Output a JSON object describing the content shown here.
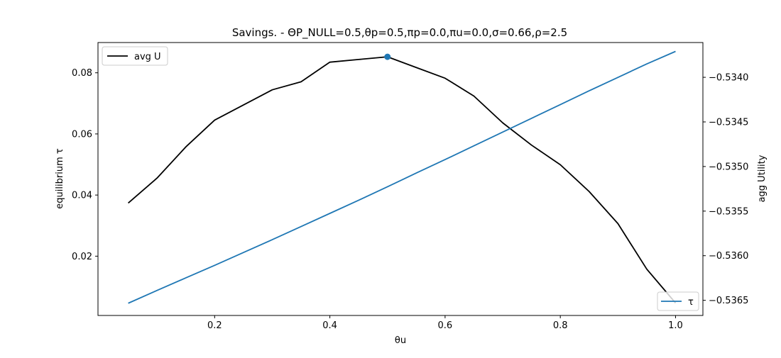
{
  "chart_data": {
    "type": "line",
    "title": "Savings. - ΘP_NULL=0.5,θp=0.5,πp=0.0,πu=0.0,σ=0.66,ρ=2.5",
    "xlabel": "θu",
    "ylabel_left": "equilibrium τ",
    "ylabel_right": "agg Utility",
    "xlim": [
      -0.0025,
      1.0475
    ],
    "ylim_left": [
      0.0006,
      0.0899
    ],
    "ylim_right": [
      -0.53667,
      -0.53361
    ],
    "x_ticks": [
      0.2,
      0.4,
      0.6,
      0.8,
      1.0
    ],
    "x_tick_labels": [
      "0.2",
      "0.4",
      "0.6",
      "0.8",
      "1.0"
    ],
    "y_left_ticks": [
      0.02,
      0.04,
      0.06,
      0.08
    ],
    "y_left_tick_labels": [
      "0.02",
      "0.04",
      "0.06",
      "0.08"
    ],
    "y_right_ticks": [
      -0.5365,
      -0.536,
      -0.5355,
      -0.535,
      -0.5345,
      -0.534
    ],
    "y_right_tick_labels": [
      "−0.5365",
      "−0.5360",
      "−0.5355",
      "−0.5350",
      "−0.5345",
      "−0.5340"
    ],
    "x": [
      0.05,
      0.1,
      0.15,
      0.2,
      0.25,
      0.3,
      0.35,
      0.4,
      0.45,
      0.5,
      0.55,
      0.6,
      0.65,
      0.7,
      0.75,
      0.8,
      0.85,
      0.9,
      0.95,
      1.0
    ],
    "series": [
      {
        "name": "avg U",
        "axis": "right",
        "color": "#000000",
        "values": [
          -0.53541,
          -0.53513,
          -0.53478,
          -0.53448,
          -0.53431,
          -0.53414,
          -0.53405,
          -0.53383,
          -0.5338,
          -0.53377,
          -0.53389,
          -0.53401,
          -0.53421,
          -0.53451,
          -0.53476,
          -0.53498,
          -0.53528,
          -0.53564,
          -0.53615,
          -0.53653
        ]
      },
      {
        "name": "τ",
        "axis": "left",
        "color": "#1f77b4",
        "values": [
          0.0046,
          0.0088,
          0.0129,
          0.017,
          0.0212,
          0.0254,
          0.0297,
          0.034,
          0.0383,
          0.0427,
          0.0472,
          0.0516,
          0.0561,
          0.0606,
          0.0651,
          0.0696,
          0.0741,
          0.0785,
          0.0829,
          0.087
        ]
      }
    ],
    "highlight_point": {
      "x": 0.5,
      "y": -0.53377,
      "axis": "right",
      "color": "#1f77b4"
    },
    "legend": [
      {
        "label": "avg U",
        "placement": "upper-left",
        "color": "#000000"
      },
      {
        "label": "τ",
        "placement": "lower-right",
        "color": "#1f77b4"
      }
    ],
    "grid": false
  }
}
